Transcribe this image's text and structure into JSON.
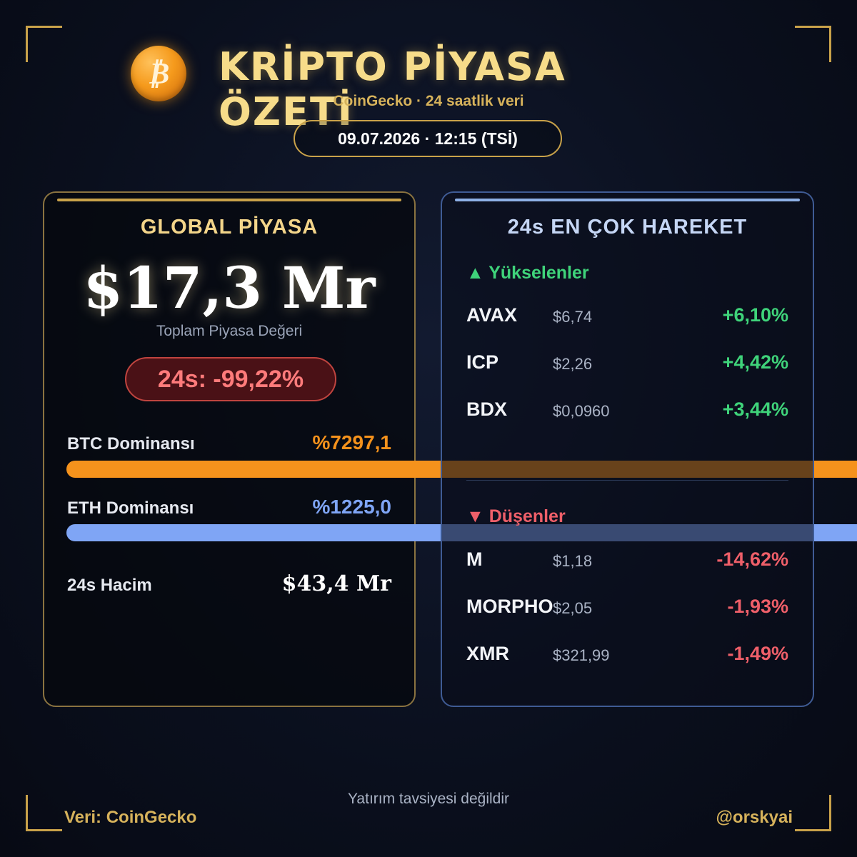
{
  "header": {
    "coin_symbol": "₿",
    "title": "KRİPTO PİYASA ÖZETİ",
    "subtitle": "CoinGecko · 24 saatlik veri",
    "datetime": "09.07.2026 · 12:15 (TSİ)"
  },
  "global": {
    "title": "GLOBAL PİYASA",
    "market_cap": "$17,3 Mr",
    "market_cap_label": "Toplam Piyasa Değeri",
    "change_24h": "24s: -99,22%",
    "btc_dominance_label": "BTC Dominansı",
    "btc_dominance_value": "%7297,1",
    "eth_dominance_label": "ETH Dominansı",
    "eth_dominance_value": "%1225,0",
    "volume_label": "24s Hacim",
    "volume_value": "$43,4 Mr"
  },
  "movers": {
    "title": "24s EN ÇOK HAREKET",
    "gainers_label": "▲ Yükselenler",
    "gainers": [
      {
        "symbol": "AVAX",
        "price": "$6,74",
        "change": "+6,10%"
      },
      {
        "symbol": "ICP",
        "price": "$2,26",
        "change": "+4,42%"
      },
      {
        "symbol": "BDX",
        "price": "$0,0960",
        "change": "+3,44%"
      }
    ],
    "losers_label": "▼ Düşenler",
    "losers": [
      {
        "symbol": "M",
        "price": "$1,18",
        "change": "-14,62%"
      },
      {
        "symbol": "MORPHO",
        "price": "$2,05",
        "change": "-1,93%"
      },
      {
        "symbol": "XMR",
        "price": "$321,99",
        "change": "-1,49%"
      }
    ]
  },
  "footer": {
    "disclaimer": "Yatırım tavsiyesi değildir",
    "source": "Veri: CoinGecko",
    "handle": "@orskyai"
  },
  "colors": {
    "gold": "#d6b25b",
    "btc_bar": "#f5921c",
    "eth_bar": "#7fa5f5",
    "up": "#3fd37a",
    "down": "#ef5f69"
  }
}
